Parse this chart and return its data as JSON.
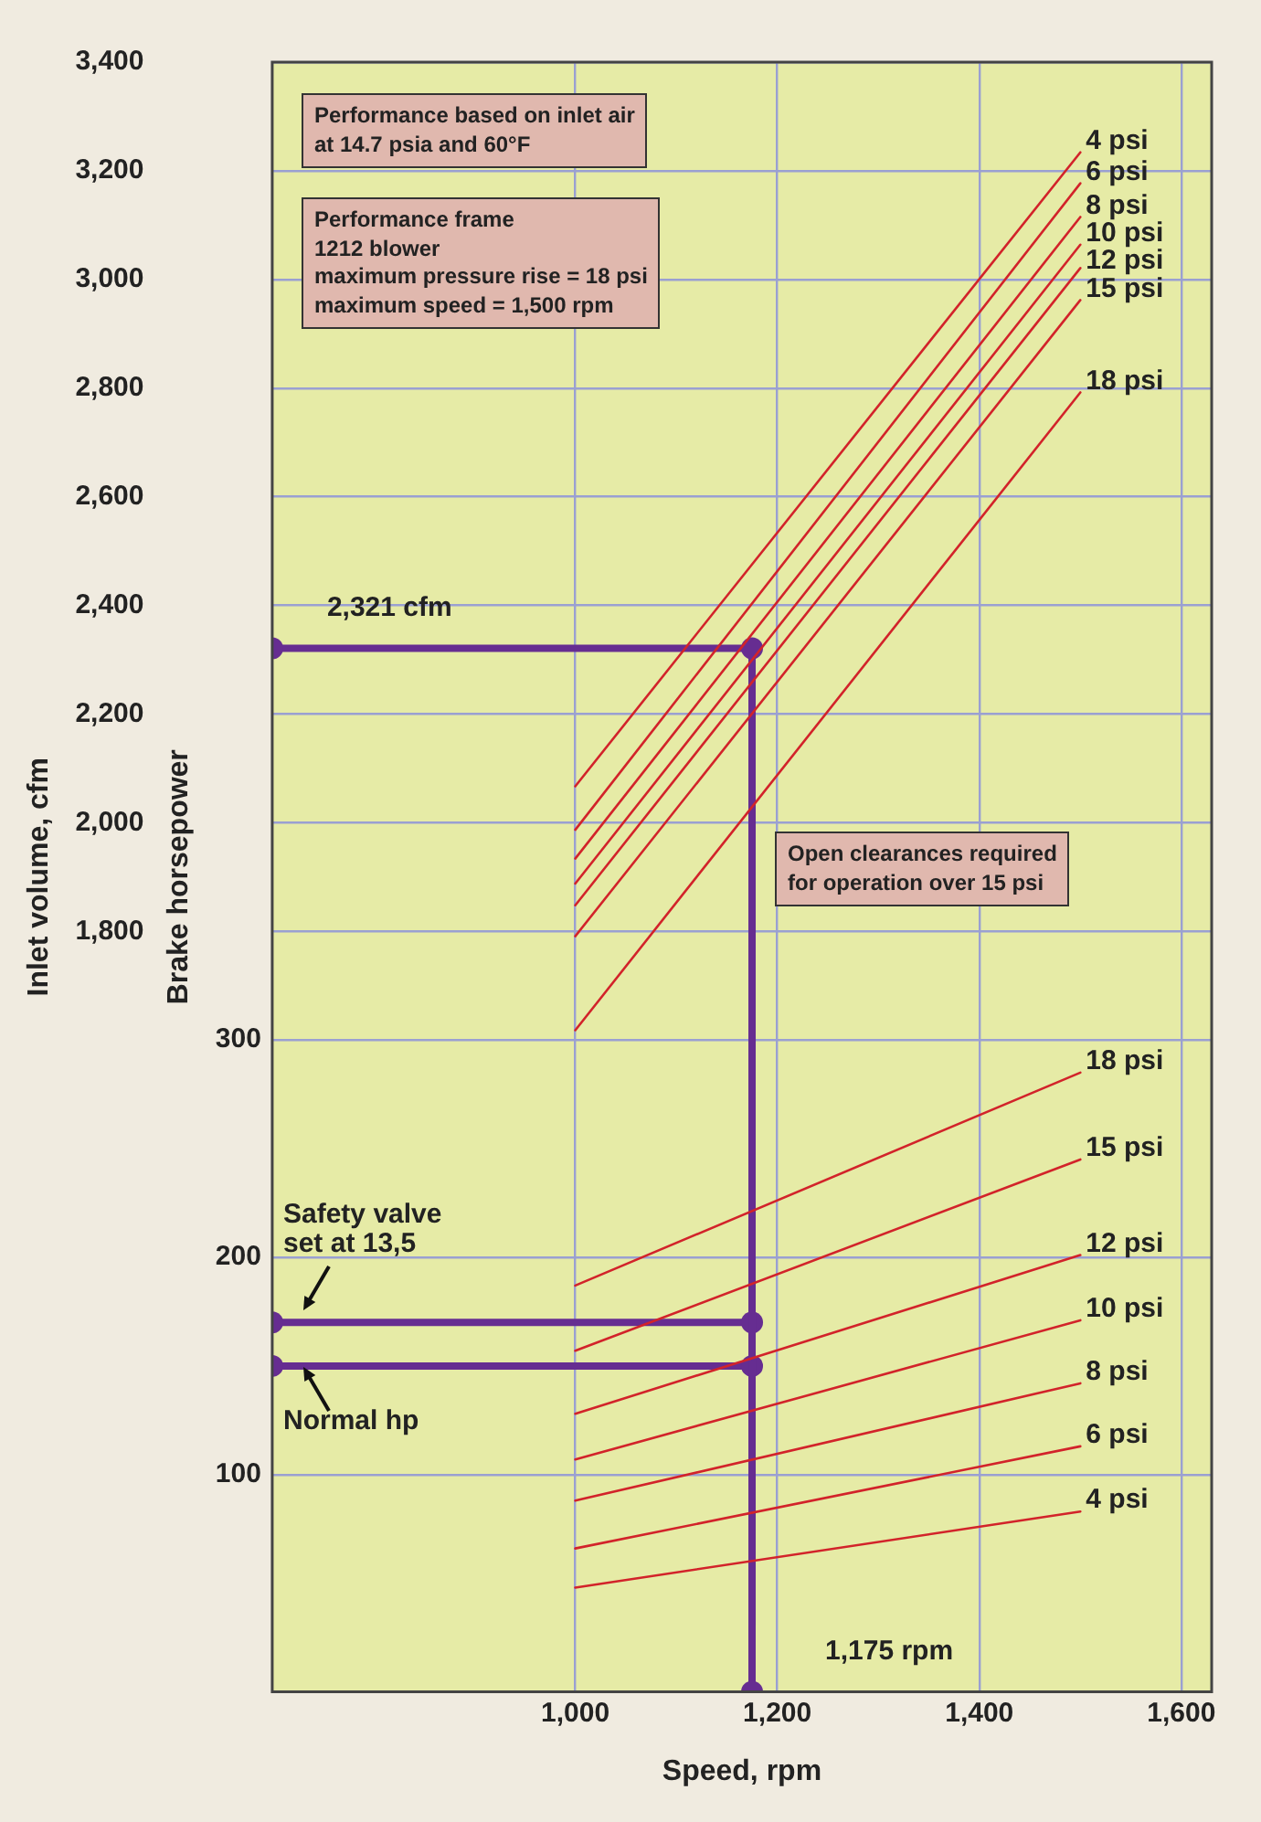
{
  "chart_data": {
    "type": "line",
    "xlabel": "Speed, rpm",
    "ylabel": "Inlet volume, cfm",
    "y2label": "Brake horsepower",
    "xlim": [
      700,
      1630
    ],
    "xticks": [
      {
        "value": 1000,
        "label": "1,000"
      },
      {
        "value": 1200,
        "label": "1,200"
      },
      {
        "value": 1400,
        "label": "1,400"
      },
      {
        "value": 1600,
        "label": "1,600"
      }
    ],
    "ylim": [
      400,
      3400
    ],
    "yticks": [
      {
        "value": 1800,
        "label": "1,800"
      },
      {
        "value": 2000,
        "label": "2,000"
      },
      {
        "value": 2200,
        "label": "2,200"
      },
      {
        "value": 2400,
        "label": "2,400"
      },
      {
        "value": 2600,
        "label": "2,600"
      },
      {
        "value": 2800,
        "label": "2,800"
      },
      {
        "value": 3000,
        "label": "3,000"
      },
      {
        "value": 3200,
        "label": "3,200"
      },
      {
        "value": 3400,
        "label": "3,400"
      }
    ],
    "y2lim": [
      0,
      750
    ],
    "y2ticks": [
      100,
      200,
      300
    ],
    "grid": true,
    "legend": false,
    "marker": "none",
    "line_style": "solid",
    "series": [
      {
        "name": "4 psi",
        "color": "#d2232a",
        "axis": "y",
        "x": [
          1000,
          1500
        ],
        "values": [
          2067,
          3234
        ]
      },
      {
        "name": "6 psi",
        "color": "#d2232a",
        "axis": "y",
        "x": [
          1000,
          1500
        ],
        "values": [
          1987,
          3177
        ]
      },
      {
        "name": "8 psi",
        "color": "#d2232a",
        "axis": "y",
        "x": [
          1000,
          1500
        ],
        "values": [
          1934,
          3115
        ]
      },
      {
        "name": "10 psi",
        "color": "#d2232a",
        "axis": "y",
        "x": [
          1000,
          1500
        ],
        "values": [
          1888,
          3064
        ]
      },
      {
        "name": "12 psi",
        "color": "#d2232a",
        "axis": "y",
        "x": [
          1000,
          1500
        ],
        "values": [
          1848,
          3021
        ]
      },
      {
        "name": "15 psi",
        "color": "#d2232a",
        "axis": "y",
        "x": [
          1000,
          1500
        ],
        "values": [
          1791,
          2962
        ]
      },
      {
        "name": "18 psi",
        "color": "#d2232a",
        "axis": "y",
        "x": [
          1000,
          1500
        ],
        "values": [
          1618,
          2792
        ]
      },
      {
        "name": "18 psi",
        "color": "#d2232a",
        "axis": "y2",
        "x": [
          1000,
          1500
        ],
        "values": [
          187,
          285
        ]
      },
      {
        "name": "15 psi",
        "color": "#d2232a",
        "axis": "y2",
        "x": [
          1000,
          1500
        ],
        "values": [
          157,
          245
        ]
      },
      {
        "name": "12 psi",
        "color": "#d2232a",
        "axis": "y2",
        "x": [
          1000,
          1500
        ],
        "values": [
          128,
          201
        ]
      },
      {
        "name": "10 psi",
        "color": "#d2232a",
        "axis": "y2",
        "x": [
          1000,
          1500
        ],
        "values": [
          107,
          171
        ]
      },
      {
        "name": "8 psi",
        "color": "#d2232a",
        "axis": "y2",
        "x": [
          1000,
          1500
        ],
        "values": [
          88,
          142
        ]
      },
      {
        "name": "6 psi",
        "color": "#d2232a",
        "axis": "y2",
        "x": [
          1000,
          1500
        ],
        "values": [
          66,
          113
        ]
      },
      {
        "name": "4 psi",
        "color": "#d2232a",
        "axis": "y2",
        "x": [
          1000,
          1500
        ],
        "values": [
          48,
          83
        ]
      },
      {
        "color": "#662d91",
        "axis": "y",
        "marker": "circle",
        "x": [
          700,
          1175,
          1175
        ],
        "values": [
          2321,
          2321,
          400
        ]
      },
      {
        "color": "#662d91",
        "axis": "y2",
        "marker": "circle",
        "x": [
          700,
          1175
        ],
        "values": [
          170,
          170
        ]
      },
      {
        "color": "#662d91",
        "axis": "y2",
        "marker": "circle",
        "x": [
          700,
          1175
        ],
        "values": [
          150,
          150
        ]
      }
    ],
    "annotations": [
      "Performance based on inlet air\nat 14.7 psia and 60°F",
      "Performance frame\n1212 blower\nmaximum pressure rise = 18 psi\nmaximum speed = 1,500 rpm",
      "Open clearances required\nfor operation over 15 psi",
      {
        "text": "2,321 cfm",
        "x": 700,
        "y": 2321
      },
      {
        "text": "1,175 rpm",
        "x": 1175,
        "y": 400
      },
      "Safety valve\nset at 13,5",
      "Normal hp"
    ]
  }
}
